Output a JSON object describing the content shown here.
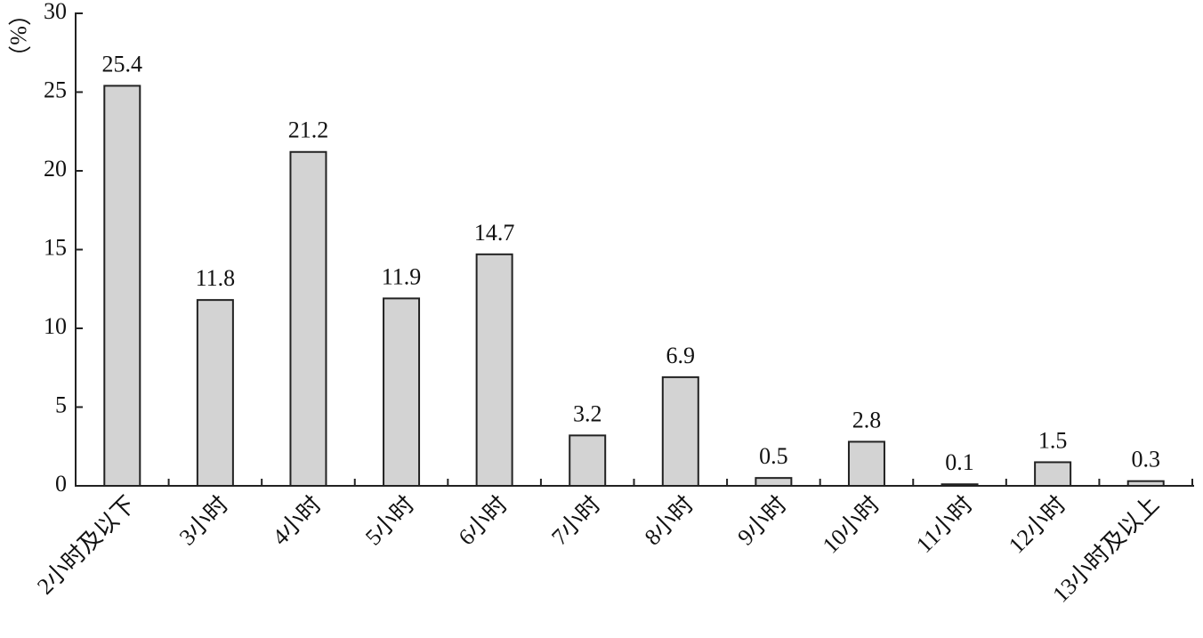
{
  "chart_data": {
    "type": "bar",
    "y_label": "（%）",
    "categories": [
      "2小时及以下",
      "3小时",
      "4小时",
      "5小时",
      "6小时",
      "7小时",
      "8小时",
      "9小时",
      "10小时",
      "11小时",
      "12小时",
      "13小时及以上"
    ],
    "values": [
      25.4,
      11.8,
      21.2,
      11.9,
      14.7,
      3.2,
      6.9,
      0.5,
      2.8,
      0.1,
      1.5,
      0.3
    ],
    "color": "#d3d3d3",
    "ylim": [
      0,
      30
    ],
    "yticks": [
      0,
      5,
      10,
      15,
      20,
      25,
      30
    ],
    "grid": false
  }
}
